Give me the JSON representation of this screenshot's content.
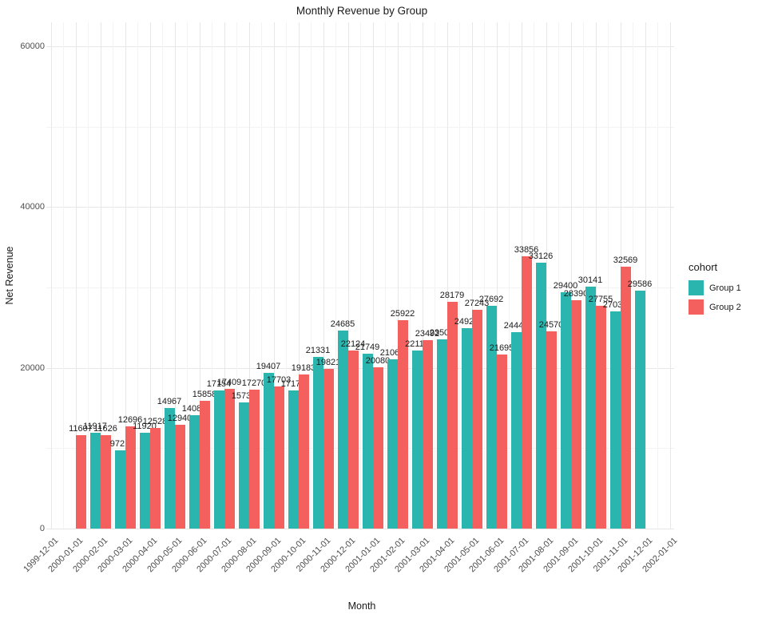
{
  "title": "Monthly Revenue by Group",
  "axes": {
    "x_label": "Month",
    "y_label": "Net Revenue",
    "y_ticks": [
      0,
      20000,
      40000,
      60000
    ],
    "y_minor": [
      10000,
      30000,
      50000
    ],
    "x_ticks": [
      "1999-12-01",
      "2000-01-01",
      "2000-02-01",
      "2000-03-01",
      "2000-04-01",
      "2000-05-01",
      "2000-06-01",
      "2000-07-01",
      "2000-08-01",
      "2000-09-01",
      "2000-10-01",
      "2000-11-01",
      "2000-12-01",
      "2001-01-01",
      "2001-02-01",
      "2001-03-01",
      "2001-04-01",
      "2001-05-01",
      "2001-06-01",
      "2001-07-01",
      "2001-08-01",
      "2001-09-01",
      "2001-10-01",
      "2001-11-01",
      "2001-12-01",
      "2002-01-01"
    ]
  },
  "legend": {
    "title": "cohort",
    "items": [
      {
        "label": "Group 1",
        "color": "#2ab5af"
      },
      {
        "label": "Group 2",
        "color": "#f4605d"
      }
    ]
  },
  "colors": {
    "group1": "#2ab5af",
    "group2": "#f4605d",
    "grid_major": "#e7e7e7",
    "grid_minor": "#f3f3f3",
    "axis_text": "#4d4d4d",
    "label_text": "#1b1b1b"
  },
  "chart_data": {
    "type": "bar",
    "title": "Monthly Revenue by Group",
    "xlabel": "Month",
    "ylabel": "Net Revenue",
    "ylim": [
      0,
      62000
    ],
    "grid": true,
    "bar_labels": true,
    "legend_title": "cohort",
    "legend_position": "right",
    "categories": [
      "2000-01-01",
      "2000-02-01",
      "2000-03-01",
      "2000-04-01",
      "2000-05-01",
      "2000-06-01",
      "2000-07-01",
      "2000-08-01",
      "2000-09-01",
      "2000-10-01",
      "2000-11-01",
      "2000-12-01",
      "2001-01-01",
      "2001-02-01",
      "2001-03-01",
      "2001-04-01",
      "2001-05-01",
      "2001-06-01",
      "2001-07-01",
      "2001-08-01",
      "2001-09-01",
      "2001-10-01",
      "2001-11-01",
      "2001-12-01"
    ],
    "series": [
      {
        "name": "Group 1",
        "color": "#2ab5af",
        "values": [
          null,
          11917,
          9721,
          11920,
          14967,
          14080,
          17154,
          15738,
          19407,
          17175,
          21331,
          24685,
          21749,
          21064,
          22119,
          23500,
          24929,
          27692,
          24441,
          33126,
          29400,
          30141,
          27036,
          29586
        ]
      },
      {
        "name": "Group 2",
        "color": "#f4605d",
        "values": [
          11607,
          11626,
          12696,
          12528,
          12940,
          15858,
          17409,
          17270,
          17703,
          19183,
          19821,
          22124,
          20080,
          25922,
          23492,
          28179,
          27243,
          21695,
          33856,
          24570,
          28390,
          27755,
          32569,
          null
        ]
      }
    ]
  }
}
